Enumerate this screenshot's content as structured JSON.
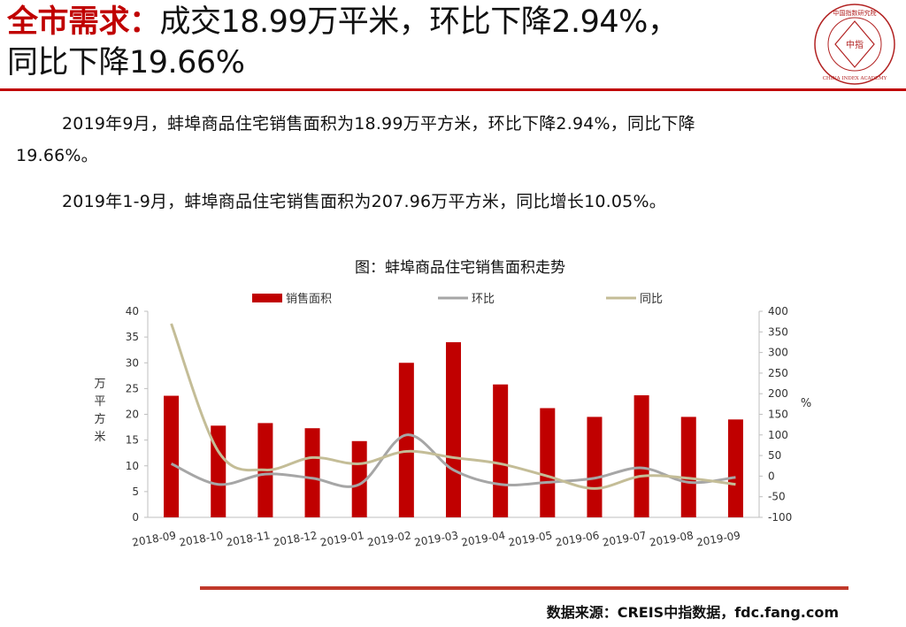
{
  "header": {
    "title_highlight": "全市需求：",
    "title_rest_line1": "成交18.99万平米，环比下降2.94%，",
    "title_line2": "同比下降19.66%"
  },
  "logo": {
    "top_text": "中国指数研究院",
    "center_text": "中指",
    "bottom_text": "CHINA INDEX ACADEMY",
    "color": "#b22222"
  },
  "body": {
    "para1_line1": "2019年9月，蚌埠商品住宅销售面积为18.99万平方米，环比下降2.94%，同比下降",
    "para1_line2": "19.66%。",
    "para2": "2019年1-9月，蚌埠商品住宅销售面积为207.96万平方米，同比增长10.05%。"
  },
  "chart_title": "图：蚌埠商品住宅销售面积走势",
  "chart_data": {
    "type": "bar",
    "categories": [
      "2018-09",
      "2018-10",
      "2018-11",
      "2018-12",
      "2019-01",
      "2019-02",
      "2019-03",
      "2019-04",
      "2019-05",
      "2019-06",
      "2019-07",
      "2019-08",
      "2019-09"
    ],
    "series": [
      {
        "name": "销售面积",
        "type": "bar",
        "axis": "left",
        "color": "#c00000",
        "values": [
          23.6,
          17.8,
          18.3,
          17.3,
          14.8,
          30.0,
          34.0,
          25.8,
          21.2,
          19.5,
          23.7,
          19.5,
          19.0
        ]
      },
      {
        "name": "环比",
        "type": "line",
        "axis": "right",
        "color": "#a6a6a6",
        "values": [
          30,
          -20,
          5,
          -5,
          -20,
          100,
          15,
          -20,
          -15,
          -5,
          20,
          -15,
          -3
        ]
      },
      {
        "name": "同比",
        "type": "line",
        "axis": "right",
        "color": "#c4bd97",
        "values": [
          370,
          60,
          15,
          45,
          30,
          60,
          45,
          30,
          0,
          -30,
          0,
          -5,
          -20
        ]
      }
    ],
    "ylabel": "万平方米",
    "y2label": "%",
    "ylim": [
      0,
      40
    ],
    "y2lim": [
      -100,
      400
    ],
    "yticks": [
      0,
      5,
      10,
      15,
      20,
      25,
      30,
      35,
      40
    ],
    "y2ticks": [
      -100,
      -50,
      0,
      50,
      100,
      150,
      200,
      250,
      300,
      350,
      400
    ],
    "legend_position": "top"
  },
  "source": "数据来源：CREIS中指数据，fdc.fang.com",
  "colors": {
    "accent": "#c00000",
    "rule": "#c0392b"
  }
}
